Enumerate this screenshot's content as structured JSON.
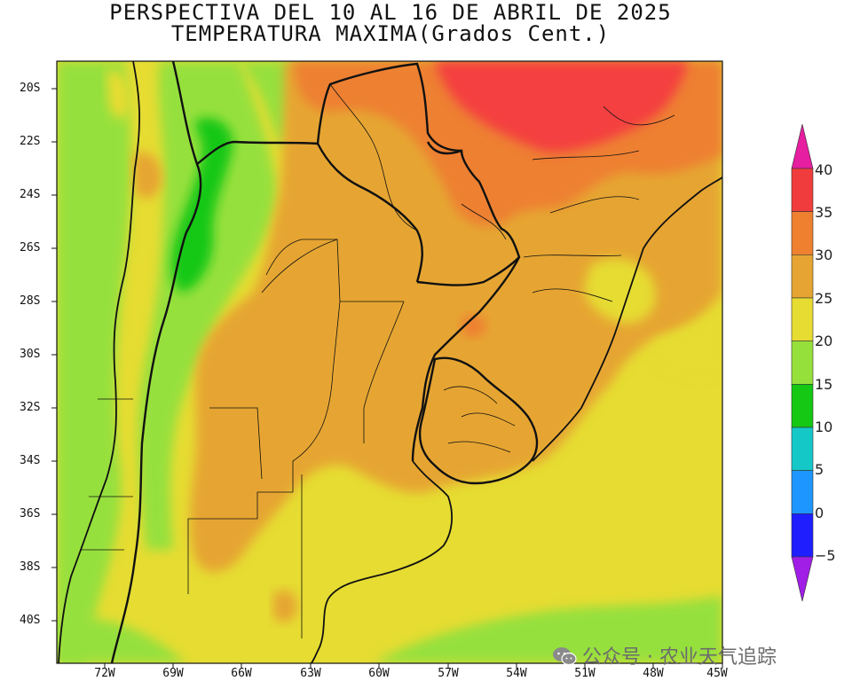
{
  "title": {
    "line1": "PERSPECTIVA DEL 10 AL 16 DE ABRIL DE 2025",
    "line2": "TEMPERATURA MAXIMA(Grados Cent.)"
  },
  "map": {
    "lon_range": [
      -73.5,
      -45
    ],
    "lat_range": [
      -41.5,
      -18.5
    ],
    "lat_ticks": [
      "20S",
      "22S",
      "24S",
      "26S",
      "28S",
      "30S",
      "32S",
      "34S",
      "36S",
      "38S",
      "40S"
    ],
    "lon_ticks": [
      "72W",
      "69W",
      "66W",
      "63W",
      "60W",
      "57W",
      "54W",
      "51W",
      "48W",
      "45W"
    ],
    "field_colors": {
      "t10_15": "#14c814",
      "t15_20": "#96e03c",
      "t20_25": "#e6dc32",
      "t25_30": "#e6a532",
      "t30_35": "#ee8030",
      "t35_40": "#f44040"
    }
  },
  "colorbar": {
    "levels": [
      "40",
      "35",
      "30",
      "25",
      "20",
      "15",
      "10",
      "5",
      "0",
      "−5"
    ],
    "colors": [
      "#f03c3c",
      "#ee8030",
      "#e6a532",
      "#e6dc32",
      "#96e03c",
      "#14c814",
      "#14c8c8",
      "#1e96ff",
      "#1e1eff"
    ],
    "top_arrow_color": "#e61ea0",
    "bottom_arrow_color": "#a01ee6"
  },
  "watermark": {
    "text": "公众号 · 农业天气追踪",
    "icon": "wechat-icon"
  }
}
